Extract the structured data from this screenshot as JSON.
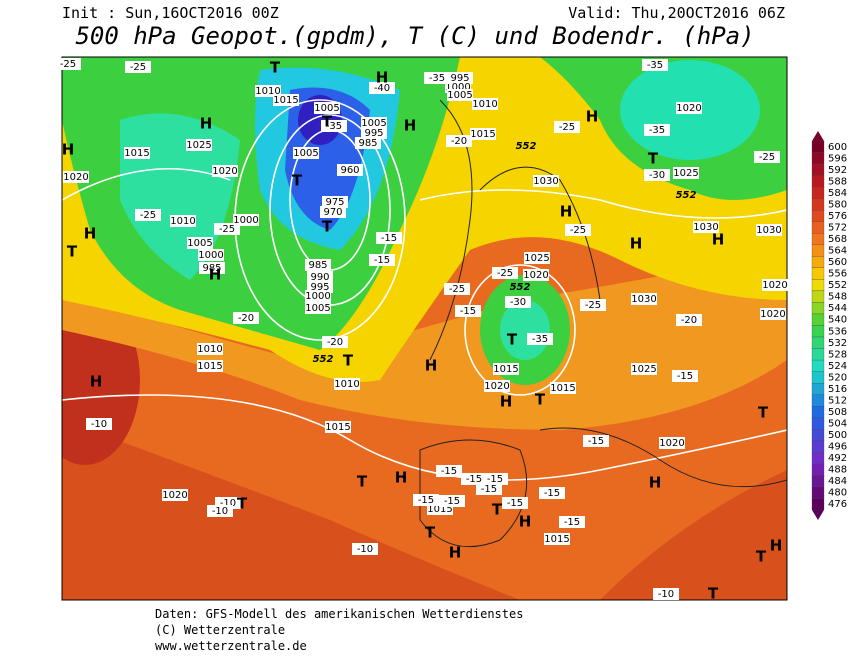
{
  "header": {
    "init": "Init : Sun,16OCT2016 00Z",
    "valid": "Valid: Thu,20OCT2016 06Z",
    "title": "500 hPa Geopot.(gpdm), T (C) und Bodendr. (hPa)"
  },
  "colorbar": {
    "ticks": [
      600,
      596,
      592,
      588,
      584,
      580,
      576,
      572,
      568,
      564,
      560,
      556,
      552,
      548,
      544,
      540,
      536,
      532,
      528,
      524,
      520,
      516,
      512,
      508,
      504,
      500,
      496,
      492,
      488,
      484,
      480,
      476
    ]
  },
  "map": {
    "pressure_labels": [
      1010,
      1015,
      1005,
      1005,
      995,
      985,
      1015,
      1025,
      1005,
      960,
      1020,
      1020,
      975,
      970,
      1000,
      1010,
      1005,
      1000,
      985,
      985,
      990,
      995,
      1000,
      1005,
      1010,
      1015,
      1010,
      1015,
      1020,
      1015,
      1015,
      1030,
      1030,
      1030,
      1025,
      1020,
      1030,
      1025,
      1020,
      1015,
      1020,
      1015,
      1020,
      1025,
      995,
      1000,
      1005,
      1010,
      1015,
      1020,
      1020
    ],
    "temperature_labels": [
      -25,
      -35,
      -35,
      -40,
      -35,
      -25,
      -25,
      -20,
      -20,
      -15,
      -15,
      -25,
      -15,
      -25,
      -30,
      -35,
      -25,
      -25,
      -25,
      -35,
      -30,
      -25,
      -20,
      -15,
      -15,
      -15,
      -15,
      -15,
      -15,
      -15,
      -15,
      -15,
      -15,
      -15,
      -10,
      -10,
      -10,
      -10,
      -10,
      -20,
      -25
    ],
    "geopotential_labels": [
      552,
      552,
      552,
      552
    ],
    "markers": [
      "H",
      "H",
      "H",
      "H",
      "H",
      "H",
      "H",
      "H",
      "H",
      "H",
      "H",
      "H",
      "H",
      "H",
      "H",
      "H",
      "H",
      "H",
      "T",
      "T",
      "T",
      "T",
      "T",
      "T",
      "T",
      "T",
      "T",
      "T",
      "T",
      "T",
      "T",
      "T",
      "T",
      "T"
    ]
  },
  "footer": {
    "lines": [
      "Daten: GFS-Modell des amerikanischen Wetterdienstes",
      "(C) Wetterzentrale",
      "www.wetterzentrale.de"
    ]
  }
}
